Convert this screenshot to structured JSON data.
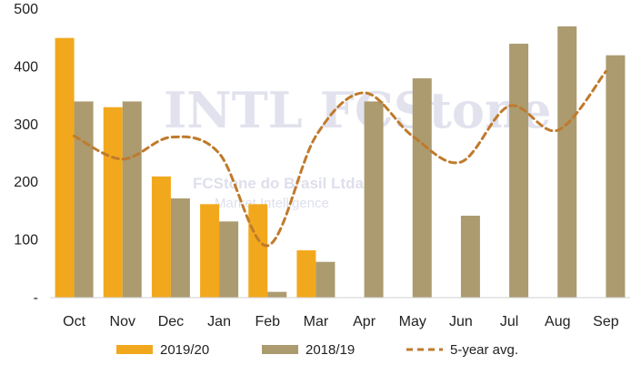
{
  "chart_data": {
    "type": "bar",
    "categories": [
      "Oct",
      "Nov",
      "Dec",
      "Jan",
      "Feb",
      "Mar",
      "Apr",
      "May",
      "Jun",
      "Jul",
      "Aug",
      "Sep"
    ],
    "series": [
      {
        "name": "2019/20",
        "type": "bar",
        "color": "#f2a81d",
        "values": [
          450,
          330,
          210,
          162,
          162,
          82,
          null,
          null,
          null,
          null,
          null,
          null
        ]
      },
      {
        "name": "2018/19",
        "type": "bar",
        "color": "#ab9b6e",
        "values": [
          340,
          340,
          172,
          132,
          10,
          62,
          340,
          380,
          142,
          440,
          470,
          420
        ]
      },
      {
        "name": "5-year avg.",
        "type": "line",
        "style": "dashed",
        "color": "#c07a2c",
        "values": [
          280,
          240,
          278,
          250,
          90,
          280,
          355,
          280,
          235,
          332,
          290,
          392
        ]
      }
    ],
    "y_ticks": [
      "-",
      "100",
      "200",
      "300",
      "400",
      "500"
    ],
    "ylim": [
      0,
      500
    ],
    "grid": false,
    "legend_position": "bottom"
  },
  "watermark": {
    "brand": "INTL FCStone",
    "company": "FCStone do Brasil Ltda",
    "division": "Market Intelligence"
  }
}
